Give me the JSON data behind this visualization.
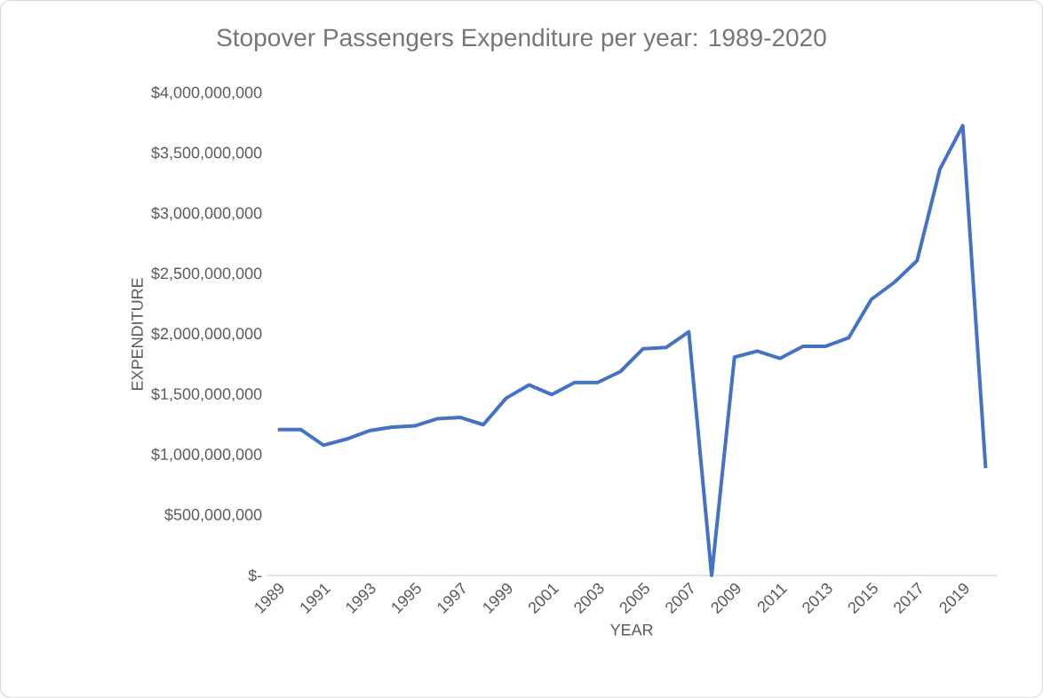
{
  "chart_data": {
    "type": "line",
    "title": "Stopover Passengers Expenditure per year: 1989-2020",
    "xlabel": "YEAR",
    "ylabel": "EXPENDITURE",
    "categories": [
      "1989",
      null,
      "1991",
      null,
      "1993",
      null,
      "1995",
      null,
      "1997",
      null,
      "1999",
      null,
      "2001",
      null,
      "2003",
      null,
      "2005",
      null,
      "2007",
      null,
      "2009",
      null,
      "2011",
      null,
      "2013",
      null,
      "2015",
      null,
      "2017",
      null,
      "2019",
      null
    ],
    "series": [
      {
        "color": "#4472c4",
        "values": [
          1210000000,
          1210000000,
          1080000000,
          1130000000,
          1200000000,
          1230000000,
          1240000000,
          1300000000,
          1310000000,
          1250000000,
          1470000000,
          1580000000,
          1500000000,
          1600000000,
          1600000000,
          1690000000,
          1880000000,
          1890000000,
          2020000000,
          0,
          1810000000,
          1860000000,
          1800000000,
          1900000000,
          1900000000,
          1970000000,
          2290000000,
          2430000000,
          2610000000,
          3370000000,
          3730000000,
          890000000
        ]
      }
    ],
    "ylim": [
      0,
      4000000000
    ],
    "yticks": [
      {
        "value": 0,
        "label": "$-"
      },
      {
        "value": 500000000,
        "label": "$500,000,000"
      },
      {
        "value": 1000000000,
        "label": "$1,000,000,000"
      },
      {
        "value": 1500000000,
        "label": "$1,500,000,000"
      },
      {
        "value": 2000000000,
        "label": "$2,000,000,000"
      },
      {
        "value": 2500000000,
        "label": "$2,500,000,000"
      },
      {
        "value": 3000000000,
        "label": "$3,000,000,000"
      },
      {
        "value": 3500000000,
        "label": "$3,500,000,000"
      },
      {
        "value": 4000000000,
        "label": "$4,000,000,000"
      }
    ]
  }
}
